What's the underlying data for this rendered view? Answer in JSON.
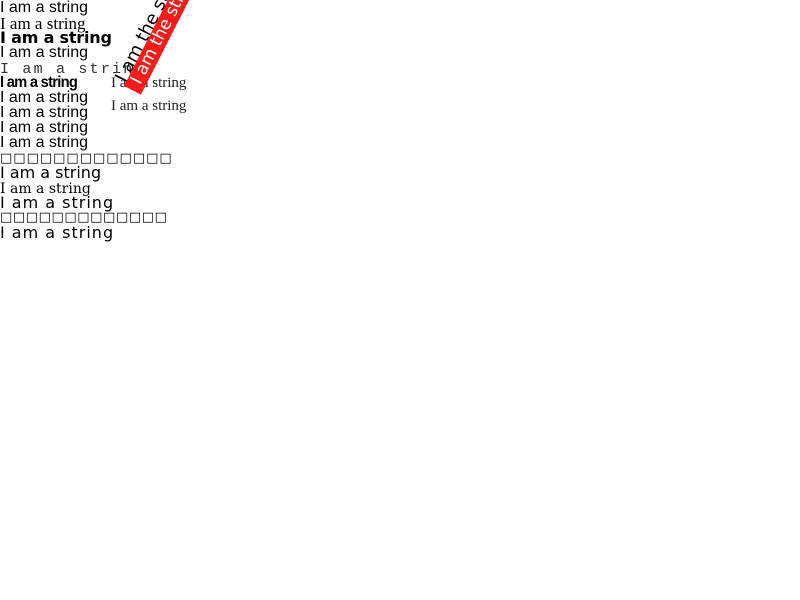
{
  "lines": [
    "I am a string",
    "I am a string",
    "I am a string",
    "I am a string",
    "I am a string",
    "I am a string",
    "I am a string",
    "I am a string",
    "I am a string",
    "I am a string",
    "□□□□□□□□□□□□□",
    "I am a string",
    "I am a string",
    "I am a string",
    "□□□□□□□□□□□□□",
    "I am a string"
  ],
  "right_lines": [
    "I am a string",
    "I am a string"
  ],
  "rotated": {
    "black": "I am the string",
    "red": "I am the string"
  },
  "colors": {
    "red_band": "#ff1a1a",
    "text": "#000000",
    "background": "#ffffff"
  }
}
